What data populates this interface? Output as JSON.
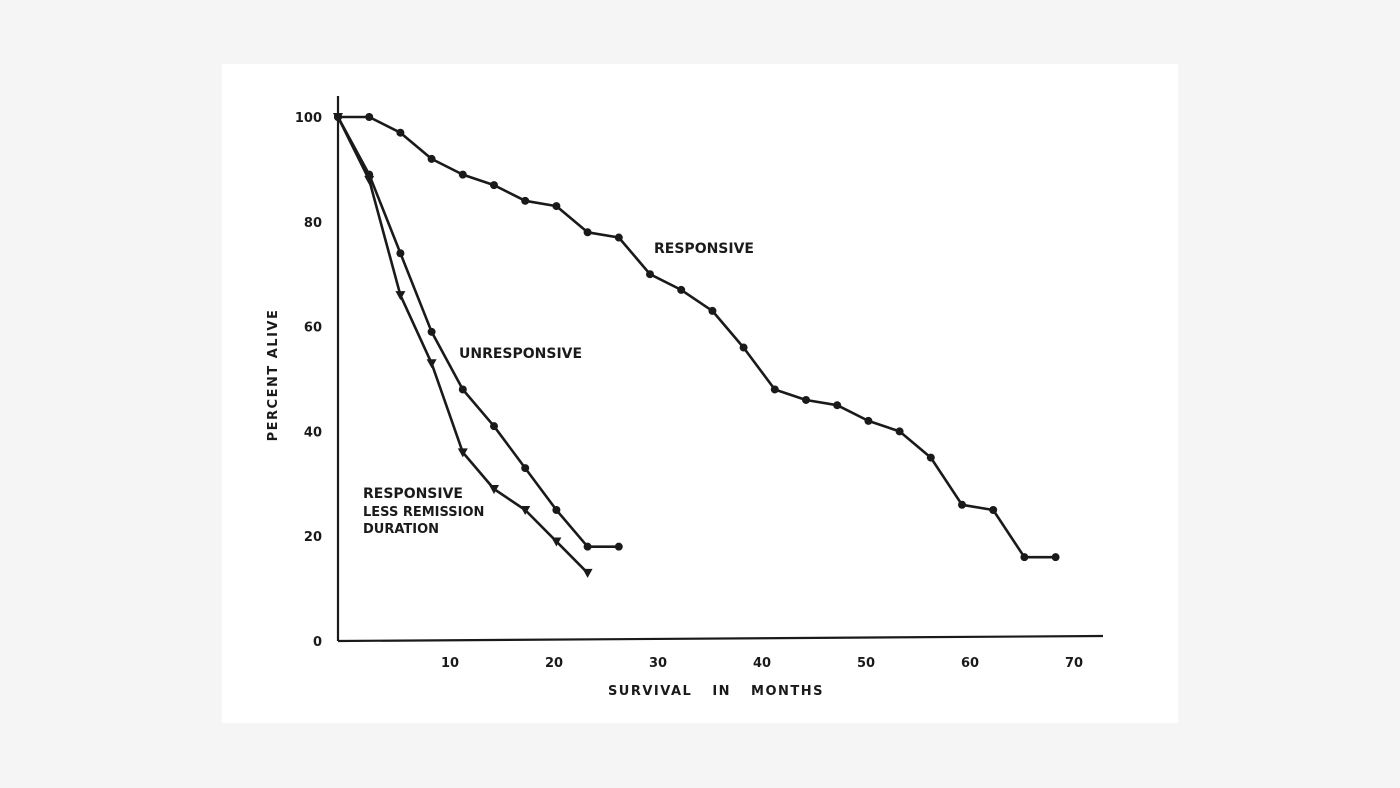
{
  "chart_data": {
    "type": "line",
    "title": "",
    "xlabel": "SURVIVAL IN MONTHS",
    "ylabel": "PERCENT ALIVE",
    "xlim": [
      0,
      72
    ],
    "ylim": [
      0,
      100
    ],
    "x_ticks": [
      10,
      20,
      30,
      40,
      50,
      60,
      70
    ],
    "y_ticks": [
      0,
      20,
      40,
      60,
      80,
      100
    ],
    "grid": false,
    "series": [
      {
        "name": "RESPONSIVE",
        "marker": "circle",
        "x": [
          0,
          3,
          6,
          9,
          12,
          15,
          18,
          21,
          24,
          27,
          30,
          33,
          36,
          39,
          42,
          45,
          48,
          51,
          54,
          57,
          60,
          63,
          66,
          69
        ],
        "y": [
          100,
          100,
          97,
          92,
          89,
          87,
          84,
          83,
          78,
          77,
          70,
          67,
          63,
          56,
          48,
          46,
          45,
          42,
          40,
          35,
          26,
          25,
          16,
          16
        ]
      },
      {
        "name": "UNRESPONSIVE",
        "marker": "circle",
        "x": [
          0,
          3,
          6,
          9,
          12,
          15,
          18,
          21,
          24,
          27
        ],
        "y": [
          100,
          89,
          74,
          59,
          48,
          41,
          33,
          25,
          18,
          18
        ]
      },
      {
        "name": "RESPONSIVE LESS REMISSION DURATION",
        "marker": "triangle-down",
        "x": [
          0,
          3,
          6,
          9,
          12,
          15,
          18,
          21,
          24
        ],
        "y": [
          100,
          88,
          66,
          53,
          36,
          29,
          25,
          19,
          13
        ]
      }
    ],
    "annotations": {
      "responsive": "RESPONSIVE",
      "unresponsive": "UNRESPONSIVE",
      "less_remission": [
        "RESPONSIVE",
        "LESS REMISSION",
        "DURATION"
      ]
    }
  }
}
